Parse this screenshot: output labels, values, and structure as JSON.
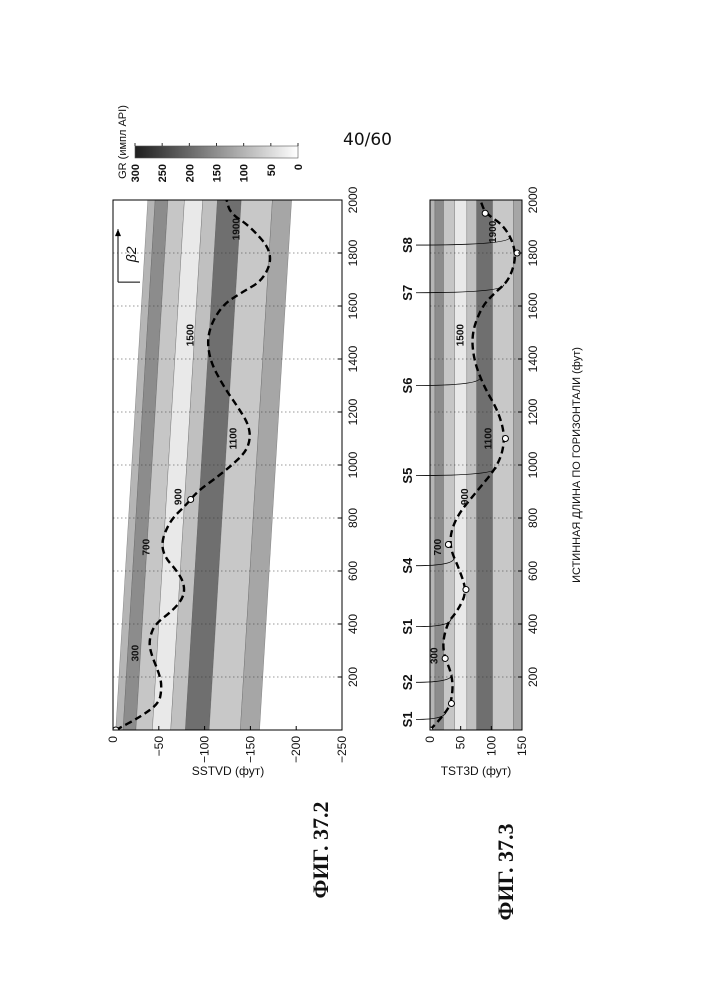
{
  "page_number": "40/60",
  "colorbar": {
    "label": "GR (импл API)",
    "ticks": [
      "300",
      "250",
      "200",
      "150",
      "100",
      "50",
      "0"
    ],
    "range": [
      0,
      300
    ],
    "colors": {
      "low": "#ffffff",
      "high": "#1e1e1e"
    }
  },
  "figures": [
    {
      "label": "ФИГ. 37.2"
    },
    {
      "label": "ФИГ. 37.3"
    }
  ],
  "chart_data": [
    {
      "type": "line",
      "xlabel": "",
      "ylabel": "SSTVD (фут)",
      "xlim": [
        0,
        2000
      ],
      "ylim": [
        -250,
        0
      ],
      "xticks": [
        "200",
        "400",
        "600",
        "800",
        "1000",
        "1200",
        "1400",
        "1600",
        "1800",
        "2000"
      ],
      "yticks": [
        "0",
        "−50",
        "−100",
        "−150",
        "−200",
        "−250"
      ],
      "grid": "vertical dotted",
      "dip_annotation": "β2",
      "series": [
        {
          "style": "dashed",
          "x": [
            0,
            50,
            100,
            150,
            200,
            300,
            350,
            400,
            450,
            500,
            550,
            600,
            650,
            700,
            750,
            800,
            850,
            900,
            950,
            1000,
            1050,
            1100,
            1150,
            1200,
            1300,
            1400,
            1500,
            1600,
            1650,
            1700,
            1800,
            1900,
            1950,
            2000
          ],
          "y": [
            -3,
            -30,
            -50,
            -53,
            -52,
            -40,
            -40,
            -46,
            -65,
            -77,
            -78,
            -70,
            -57,
            -53,
            -57,
            -65,
            -80,
            -92,
            -112,
            -130,
            -145,
            -150,
            -148,
            -140,
            -120,
            -105,
            -103,
            -118,
            -140,
            -165,
            -175,
            -150,
            -128,
            -124
          ]
        }
      ],
      "markers_x": [
        0,
        870
      ],
      "contour_labels": [
        {
          "text": "300",
          "x": 290,
          "y": -28
        },
        {
          "text": "700",
          "x": 690,
          "y": -40
        },
        {
          "text": "900",
          "x": 880,
          "y": -75
        },
        {
          "text": "1100",
          "x": 1100,
          "y": -135
        },
        {
          "text": "1500",
          "x": 1490,
          "y": -88
        },
        {
          "text": "1900",
          "x": 1890,
          "y": -138
        }
      ]
    },
    {
      "type": "line",
      "xlabel": "ИСТИННАЯ ДЛИНА ПО ГОРИЗОНТАЛИ (фут)",
      "ylabel": "TST3D (фут)",
      "xlim": [
        0,
        2000
      ],
      "ylim": [
        150,
        0
      ],
      "xticks": [
        "200",
        "400",
        "600",
        "800",
        "1000",
        "1200",
        "1400",
        "1600",
        "1800",
        "2000"
      ],
      "yticks": [
        "0",
        "50",
        "100",
        "150"
      ],
      "grid": "vertical dotted",
      "series": [
        {
          "style": "dashed",
          "x": [
            0,
            50,
            100,
            200,
            300,
            400,
            450,
            520,
            600,
            700,
            800,
            900,
            1000,
            1100,
            1200,
            1300,
            1400,
            1500,
            1600,
            1650,
            1700,
            1800,
            1900,
            1950,
            2000
          ],
          "y": [
            0,
            20,
            35,
            38,
            19,
            27,
            45,
            60,
            49,
            30,
            41,
            76,
            112,
            123,
            112,
            87,
            71,
            68,
            85,
            106,
            130,
            142,
            123,
            90,
            82
          ]
        }
      ],
      "markers_x": [
        0,
        100,
        270,
        530,
        700,
        1100,
        1800,
        1950
      ],
      "contour_labels": [
        {
          "text": "300",
          "x": 280,
          "y": 12
        },
        {
          "text": "700",
          "x": 690,
          "y": 18
        },
        {
          "text": "900",
          "x": 880,
          "y": 62
        },
        {
          "text": "1100",
          "x": 1100,
          "y": 100
        },
        {
          "text": "1500",
          "x": 1490,
          "y": 55
        },
        {
          "text": "1900",
          "x": 1880,
          "y": 108
        }
      ],
      "stations": [
        {
          "label": "S1",
          "x": 40
        },
        {
          "label": "S2",
          "x": 180
        },
        {
          "label": "S1",
          "x": 390
        },
        {
          "label": "S4",
          "x": 620
        },
        {
          "label": "S5",
          "x": 960
        },
        {
          "label": "S6",
          "x": 1300
        },
        {
          "label": "S7",
          "x": 1650
        },
        {
          "label": "S8",
          "x": 1830
        }
      ]
    }
  ]
}
